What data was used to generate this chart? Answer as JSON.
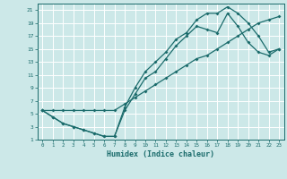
{
  "xlabel": "Humidex (Indice chaleur)",
  "background_color": "#cce8e8",
  "grid_color": "#ffffff",
  "line_color": "#1a6b6b",
  "xlim": [
    -0.5,
    23.5
  ],
  "ylim": [
    1,
    22
  ],
  "xticks": [
    0,
    1,
    2,
    3,
    4,
    5,
    6,
    7,
    8,
    9,
    10,
    11,
    12,
    13,
    14,
    15,
    16,
    17,
    18,
    19,
    20,
    21,
    22,
    23
  ],
  "yticks": [
    1,
    3,
    5,
    7,
    9,
    11,
    13,
    15,
    17,
    19,
    21
  ],
  "curve1_x": [
    0,
    1,
    2,
    3,
    4,
    5,
    6,
    7,
    8,
    9,
    10,
    11,
    12,
    13,
    14,
    15,
    16,
    17,
    18,
    19,
    20,
    21,
    22,
    23
  ],
  "curve1_y": [
    5.5,
    4.5,
    3.5,
    3.0,
    2.5,
    2.0,
    1.5,
    1.5,
    6.0,
    9.0,
    11.5,
    13.0,
    14.5,
    16.5,
    17.5,
    19.5,
    20.5,
    20.5,
    21.5,
    20.5,
    19.0,
    17.0,
    14.5,
    15.0
  ],
  "curve2_x": [
    0,
    1,
    2,
    3,
    4,
    5,
    6,
    7,
    8,
    9,
    10,
    11,
    12,
    13,
    14,
    15,
    16,
    17,
    18,
    19,
    20,
    21,
    22,
    23
  ],
  "curve2_y": [
    5.5,
    4.5,
    3.5,
    3.0,
    2.5,
    2.0,
    1.5,
    1.5,
    5.5,
    8.0,
    10.5,
    11.5,
    13.5,
    15.5,
    17.0,
    18.5,
    18.0,
    17.5,
    20.5,
    18.5,
    16.0,
    14.5,
    14.0,
    15.0
  ],
  "curve3_x": [
    0,
    1,
    2,
    3,
    4,
    5,
    6,
    7,
    8,
    9,
    10,
    11,
    12,
    13,
    14,
    15,
    16,
    17,
    18,
    19,
    20,
    21,
    22,
    23
  ],
  "curve3_y": [
    5.5,
    5.5,
    5.5,
    5.5,
    5.5,
    5.5,
    5.5,
    5.5,
    6.5,
    7.5,
    8.5,
    9.5,
    10.5,
    11.5,
    12.5,
    13.5,
    14.0,
    15.0,
    16.0,
    17.0,
    18.0,
    19.0,
    19.5,
    20.0
  ]
}
